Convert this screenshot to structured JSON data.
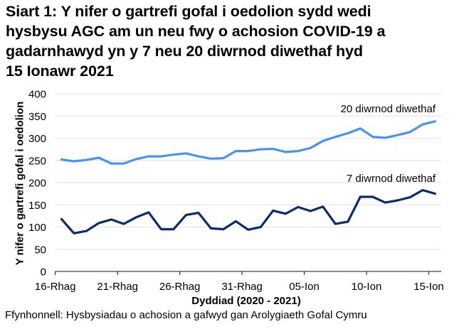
{
  "title": "Siart 1: Y nifer o gartrefi gofal i oedolion sydd wedi hysbysu AGC am un neu fwy o achosion COVID-19 a gadarnhawyd yn y 7 neu 20 diwrnod diwethaf hyd 15 Ionawr 2021",
  "title_lines": [
    "Siart 1: Y nifer o gartrefi gofal i oedolion sydd wedi",
    "hysbysu AGC am un neu fwy o achosion COVID-19 a",
    "gadarnhawyd yn y 7 neu 20 diwrnod diwethaf hyd",
    "15 Ionawr 2021"
  ],
  "source": "Ffynhonnell: Hysbysiadau o achosion a gafwyd gan Arolygiaeth Gofal Cymru",
  "colors": {
    "series_20_day": "#4a93f2",
    "series_7_day": "#0b2d6b",
    "gridline": "#e6e6e6",
    "axis": "#404040"
  },
  "chart_data": {
    "type": "line",
    "title": "Siart 1: Y nifer o gartrefi gofal i oedolion sydd wedi hysbysu AGC am un neu fwy o achosion COVID-19 a gadarnhawyd yn y 7 neu 20 diwrnod diwethaf hyd 15 Ionawr 2021",
    "xlabel": "Dyddiad (2020 - 2021)",
    "ylabel": "Y nifer o gartrefi gofal i oedolion",
    "ylim": [
      0,
      400
    ],
    "yticks": [
      0,
      50,
      100,
      150,
      200,
      250,
      300,
      350,
      400
    ],
    "grid": true,
    "legend_position": "inline labels above series",
    "x": [
      "16-Rhag",
      "17-Rhag",
      "18-Rhag",
      "19-Rhag",
      "20-Rhag",
      "21-Rhag",
      "22-Rhag",
      "23-Rhag",
      "24-Rhag",
      "25-Rhag",
      "26-Rhag",
      "27-Rhag",
      "28-Rhag",
      "29-Rhag",
      "30-Rhag",
      "31-Rhag",
      "01-Ion",
      "02-Ion",
      "03-Ion",
      "04-Ion",
      "05-Ion",
      "06-Ion",
      "07-Ion",
      "08-Ion",
      "09-Ion",
      "10-Ion",
      "11-Ion",
      "12-Ion",
      "13-Ion",
      "14-Ion",
      "15-Ion"
    ],
    "xtick_labels": [
      "16-Rhag",
      "21-Rhag",
      "26-Rhag",
      "31-Rhag",
      "05-Ion",
      "10-Ion",
      "15-Ion"
    ],
    "series": [
      {
        "name": "20 diwrnod diwethaf",
        "values": [
          252,
          248,
          251,
          256,
          243,
          243,
          253,
          259,
          259,
          263,
          266,
          259,
          254,
          255,
          271,
          271,
          275,
          276,
          269,
          271,
          278,
          294,
          303,
          311,
          322,
          303,
          301,
          307,
          314,
          331,
          338
        ]
      },
      {
        "name": "7 diwrnod diwethaf",
        "values": [
          118,
          86,
          91,
          109,
          117,
          107,
          122,
          133,
          95,
          95,
          127,
          132,
          97,
          95,
          113,
          94,
          100,
          137,
          130,
          145,
          136,
          146,
          107,
          112,
          168,
          168,
          155,
          160,
          167,
          183,
          175
        ]
      }
    ]
  }
}
